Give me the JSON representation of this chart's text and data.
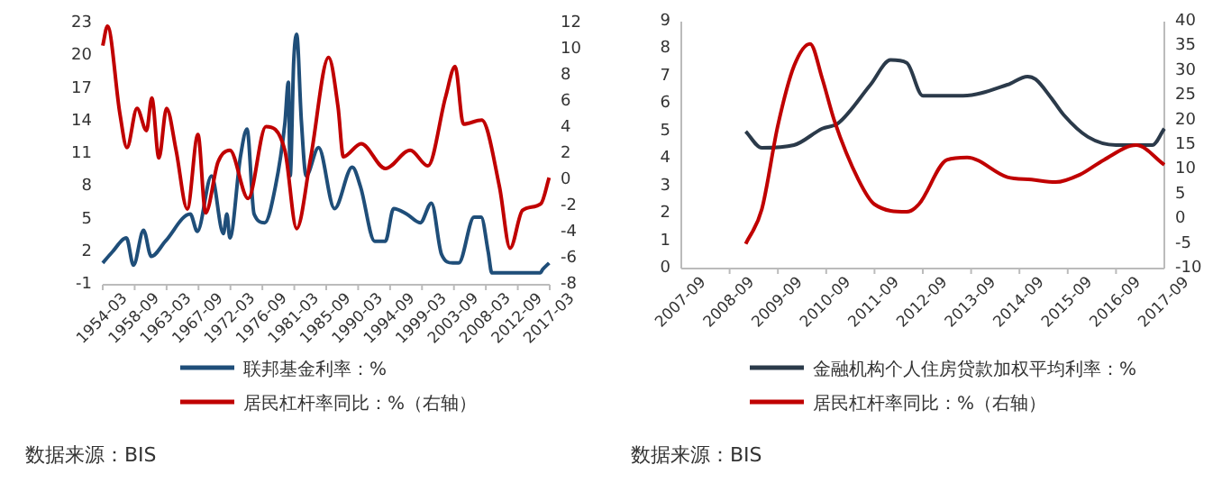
{
  "chart_data": [
    {
      "type": "line",
      "legend": "bottom",
      "line_style": "solid",
      "xlim": [
        "1954-03",
        "2017-03"
      ],
      "xticks": [
        "1954-03",
        "1958-09",
        "1963-03",
        "1967-09",
        "1972-03",
        "1976-09",
        "1981-03",
        "1985-09",
        "1990-03",
        "1994-09",
        "1999-03",
        "2003-09",
        "2008-03",
        "2012-09",
        "2017-03"
      ],
      "ylim": [
        -1,
        23
      ],
      "yticks": [
        -1,
        2,
        5,
        8,
        11,
        14,
        17,
        20,
        23
      ],
      "y2lim": [
        -8,
        12
      ],
      "y2ticks": [
        -8,
        -6,
        -4,
        -2,
        0,
        2,
        4,
        6,
        8,
        10,
        12
      ],
      "series": [
        {
          "name": "联邦基金利率：%",
          "color": "#1f4e79",
          "x": [
            "1954-03",
            "1955-07",
            "1957-07",
            "1958-07",
            "1959-12",
            "1961-01",
            "1963-01",
            "1966-07",
            "1967-07",
            "1969-07",
            "1971-03",
            "1971-09",
            "1972-02",
            "1973-08",
            "1974-07",
            "1975-07",
            "1977-01",
            "1978-07",
            "1979-11",
            "1980-05",
            "1980-08",
            "1981-02",
            "1981-07",
            "1982-03",
            "1982-11",
            "1984-08",
            "1986-11",
            "1989-05",
            "1990-07",
            "1992-07",
            "1994-01",
            "1995-03",
            "1997-01",
            "1998-12",
            "2000-07",
            "2001-12",
            "2003-07",
            "2004-05",
            "2006-07",
            "2007-07",
            "2008-07",
            "2009-01",
            "2015-11",
            "2016-03",
            "2017-02"
          ],
          "values": [
            1.0,
            2.0,
            3.3,
            0.8,
            4.0,
            1.6,
            3.0,
            5.5,
            3.9,
            9.0,
            3.7,
            5.5,
            3.3,
            10.8,
            13.3,
            5.5,
            4.7,
            8.0,
            13.8,
            17.6,
            9.0,
            19.5,
            22.0,
            14.0,
            9.0,
            11.6,
            6.0,
            9.8,
            8.0,
            3.0,
            3.0,
            6.0,
            5.5,
            4.7,
            6.5,
            1.8,
            1.0,
            1.0,
            5.2,
            5.2,
            2.0,
            0.1,
            0.1,
            0.4,
            1.0
          ]
        },
        {
          "name": "居民杠杆率同比：%（右轴）",
          "color": "#c00000",
          "axis": "y2",
          "x": [
            "1954-03",
            "1954-11",
            "1956-08",
            "1957-08",
            "1959-01",
            "1960-05",
            "1961-02",
            "1962-02",
            "1963-03",
            "1964-07",
            "1966-02",
            "1967-08",
            "1968-09",
            "1970-06",
            "1972-02",
            "1974-09",
            "1977-03",
            "1979-11",
            "1981-07",
            "1983-07",
            "1986-01",
            "1987-05",
            "1988-02",
            "1990-08",
            "1994-01",
            "1997-07",
            "2000-01",
            "2002-07",
            "2003-11",
            "2005-01",
            "2007-08",
            "2010-02",
            "2011-08",
            "2013-05",
            "2015-12",
            "2017-02"
          ],
          "values": [
            10.3,
            11.8,
            5.1,
            2.5,
            5.5,
            3.8,
            6.3,
            1.7,
            5.5,
            2.3,
            -2.2,
            3.5,
            -2.5,
            1.4,
            2.3,
            -1.4,
            4.1,
            2.3,
            -3.7,
            1.8,
            9.4,
            5.6,
            1.8,
            2.8,
            0.9,
            2.3,
            1.1,
            6.4,
            8.7,
            4.3,
            4.6,
            -0.5,
            -5.2,
            -2.3,
            -1.8,
            0.2
          ]
        }
      ],
      "annotations": [
        "数据来源：BIS"
      ]
    },
    {
      "type": "line",
      "legend": "bottom",
      "line_style": "solid",
      "xlim": [
        "2007-09",
        "2017-09"
      ],
      "xticks": [
        "2007-09",
        "2008-09",
        "2009-09",
        "2010-09",
        "2011-09",
        "2012-09",
        "2013-09",
        "2014-09",
        "2015-09",
        "2016-09",
        "2017-09"
      ],
      "ylim": [
        0,
        9
      ],
      "yticks": [
        0,
        1,
        2,
        3,
        4,
        5,
        6,
        7,
        8,
        9
      ],
      "y2lim": [
        -10,
        40
      ],
      "y2ticks": [
        -10,
        -5,
        0,
        5,
        10,
        15,
        20,
        25,
        30,
        35,
        40
      ],
      "series": [
        {
          "name": "金融机构个人住房贷款加权平均利率：%",
          "color": "#2b3a4a",
          "x": [
            "2009-01",
            "2009-05",
            "2010-01",
            "2010-08",
            "2010-12",
            "2011-08",
            "2012-01",
            "2012-05",
            "2012-09",
            "2013-07",
            "2014-06",
            "2014-11",
            "2015-01",
            "2015-05",
            "2015-08",
            "2016-02",
            "2016-09",
            "2017-06",
            "2017-09"
          ],
          "values": [
            5.0,
            4.4,
            4.5,
            5.1,
            5.3,
            6.7,
            7.6,
            7.5,
            6.3,
            6.3,
            6.7,
            7.0,
            6.9,
            6.2,
            5.6,
            4.8,
            4.5,
            4.5,
            5.1
          ]
        },
        {
          "name": "居民杠杆率同比：%（右轴）",
          "color": "#c00000",
          "axis": "y2",
          "x": [
            "2009-01",
            "2009-05",
            "2009-09",
            "2010-01",
            "2010-05",
            "2010-08",
            "2010-11",
            "2011-05",
            "2011-09",
            "2012-05",
            "2012-08",
            "2013-03",
            "2013-08",
            "2014-06",
            "2014-12",
            "2015-06",
            "2015-12",
            "2016-06",
            "2017-02",
            "2017-09"
          ],
          "values": [
            -5,
            2,
            19,
            31,
            35.5,
            28.5,
            20,
            8,
            3,
            1.5,
            3,
            12,
            12.5,
            8.5,
            8,
            7.5,
            9,
            12,
            15,
            11
          ]
        }
      ],
      "annotations": [
        "数据来源：BIS"
      ]
    }
  ]
}
